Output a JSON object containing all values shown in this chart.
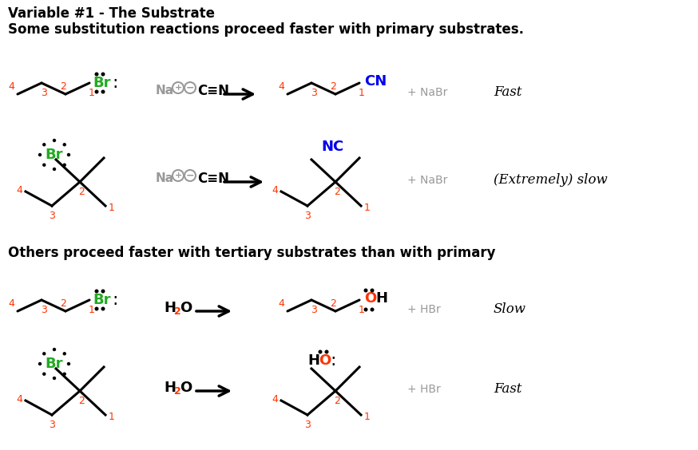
{
  "title1": "Variable #1 - The Substrate",
  "subtitle1": "Some substitution reactions proceed faster with primary substrates.",
  "subtitle2": "Others proceed faster with tertiary substrates than with primary",
  "bg_color": "#ffffff",
  "text_color": "#000000",
  "red_color": "#ff3300",
  "green_color": "#22aa22",
  "blue_color": "#0000ee",
  "gray_color": "#999999",
  "rate1": "Fast",
  "rate2": "(Extremely) slow",
  "rate3": "Slow",
  "rate4": "Fast",
  "fig_w": 8.74,
  "fig_h": 5.64,
  "dpi": 100
}
